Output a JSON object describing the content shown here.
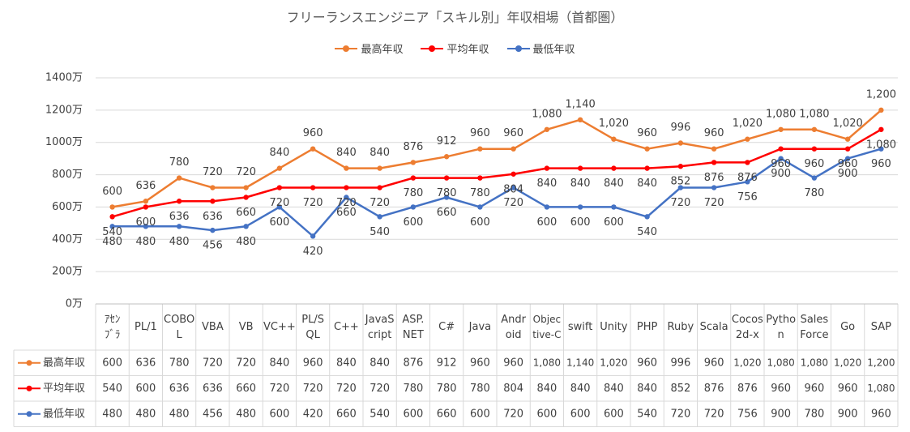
{
  "chart_data": {
    "type": "line",
    "title": "フリーランスエンジニア「スキル別」年収相場（首都圏）",
    "categories": [
      [
        "ｱｾﾝ",
        "ﾌﾞﾗ"
      ],
      [
        "PL/1"
      ],
      [
        "COBO",
        "L"
      ],
      [
        "VBA"
      ],
      [
        "VB"
      ],
      [
        "VC++"
      ],
      [
        "PL/S",
        "QL"
      ],
      [
        "C++"
      ],
      [
        "JavaS",
        "cript"
      ],
      [
        "ASP.",
        "NET"
      ],
      [
        "C#"
      ],
      [
        "Java"
      ],
      [
        "Andr",
        "oid"
      ],
      [
        "Objec",
        "tive-C"
      ],
      [
        "swift"
      ],
      [
        "Unity"
      ],
      [
        "PHP"
      ],
      [
        "Ruby"
      ],
      [
        "Scala"
      ],
      [
        "Cocos",
        "2d-x"
      ],
      [
        "Pytho",
        "n"
      ],
      [
        "Sales",
        "Force"
      ],
      [
        "Go"
      ],
      [
        "SAP"
      ]
    ],
    "series": [
      {
        "name": "最高年収",
        "color": "#ED7D31",
        "values": [
          600,
          636,
          780,
          720,
          720,
          840,
          960,
          840,
          840,
          876,
          912,
          960,
          960,
          1080,
          1140,
          1020,
          960,
          996,
          960,
          1020,
          1080,
          1080,
          1020,
          1200
        ],
        "labels": [
          "600",
          "636",
          "780",
          "720",
          "720",
          "840",
          "960",
          "840",
          "840",
          "876",
          "912",
          "960",
          "960",
          "1,080",
          "1,140",
          "1,020",
          "960",
          "996",
          "960",
          "1,020",
          "1,080",
          "1,080",
          "1,020",
          "1,200"
        ]
      },
      {
        "name": "平均年収",
        "color": "#FF0000",
        "values": [
          540,
          600,
          636,
          636,
          660,
          720,
          720,
          720,
          720,
          780,
          780,
          780,
          804,
          840,
          840,
          840,
          840,
          852,
          876,
          876,
          960,
          960,
          960,
          1080
        ],
        "labels": [
          "540",
          "600",
          "636",
          "636",
          "660",
          "720",
          "720",
          "720",
          "720",
          "780",
          "780",
          "780",
          "804",
          "840",
          "840",
          "840",
          "840",
          "852",
          "876",
          "876",
          "960",
          "960",
          "960",
          "1,080"
        ]
      },
      {
        "name": "最低年収",
        "color": "#4472C4",
        "values": [
          480,
          480,
          480,
          456,
          480,
          600,
          420,
          660,
          540,
          600,
          660,
          600,
          720,
          600,
          600,
          600,
          540,
          720,
          720,
          756,
          900,
          780,
          900,
          960
        ],
        "labels": [
          "480",
          "480",
          "480",
          "456",
          "480",
          "600",
          "420",
          "660",
          "540",
          "600",
          "660",
          "600",
          "720",
          "600",
          "600",
          "600",
          "540",
          "720",
          "720",
          "756",
          "900",
          "780",
          "900",
          "960"
        ]
      }
    ],
    "y_ticks": [
      "0万",
      "200万",
      "400万",
      "600万",
      "800万",
      "1000万",
      "1200万",
      "1400万"
    ],
    "ylim": [
      0,
      1400
    ],
    "grid": true,
    "legend": "top-center",
    "data_table": true
  }
}
